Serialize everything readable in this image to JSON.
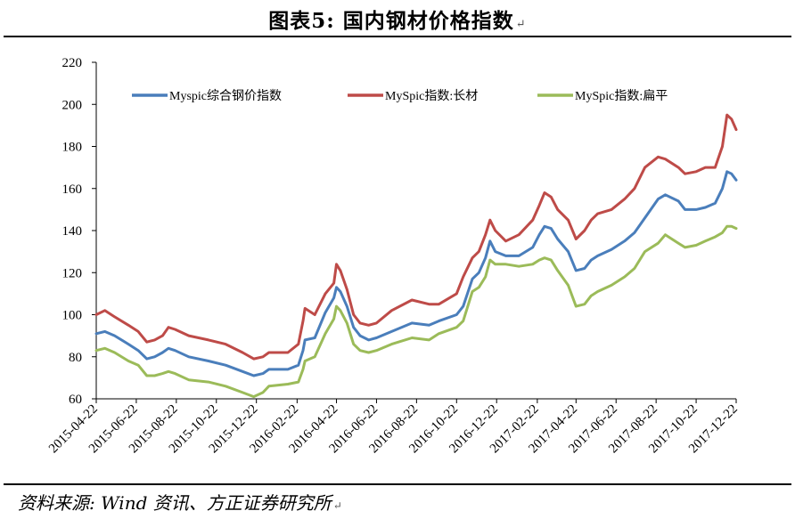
{
  "page": {
    "title": "图表5:  国内钢材价格指数",
    "title_mark": "↵",
    "source": "资料来源: Wind 资讯、方正证券研究所",
    "source_mark": "↵"
  },
  "chart_data": {
    "type": "line",
    "title": "图表5:  国内钢材价格指数",
    "xlabel": "",
    "ylabel": "",
    "ylim": [
      60,
      220
    ],
    "yticks": [
      60,
      80,
      100,
      120,
      140,
      160,
      180,
      200,
      220
    ],
    "xlim": [
      "2015-04-22",
      "2017-12-22"
    ],
    "xticks": [
      "2015-04-22",
      "2015-06-22",
      "2015-08-22",
      "2015-10-22",
      "2015-12-22",
      "2016-02-22",
      "2016-04-22",
      "2016-06-22",
      "2016-08-22",
      "2016-10-22",
      "2016-12-22",
      "2017-02-22",
      "2017-04-22",
      "2017-06-22",
      "2017-08-22",
      "2017-10-22",
      "2017-12-22"
    ],
    "grid": false,
    "legend": "top",
    "series": [
      {
        "name": "Myspic综合钢价指数",
        "color": "#4a7ebb",
        "points": [
          [
            "2015-04-22",
            91
          ],
          [
            "2015-05-05",
            92
          ],
          [
            "2015-05-20",
            90
          ],
          [
            "2015-06-10",
            86
          ],
          [
            "2015-06-25",
            83
          ],
          [
            "2015-07-08",
            79
          ],
          [
            "2015-07-20",
            80
          ],
          [
            "2015-08-01",
            82
          ],
          [
            "2015-08-10",
            84
          ],
          [
            "2015-08-20",
            83
          ],
          [
            "2015-09-10",
            80
          ],
          [
            "2015-10-10",
            78
          ],
          [
            "2015-11-05",
            76
          ],
          [
            "2015-12-01",
            73
          ],
          [
            "2015-12-18",
            71
          ],
          [
            "2016-01-01",
            72
          ],
          [
            "2016-01-10",
            74
          ],
          [
            "2016-02-08",
            74
          ],
          [
            "2016-02-24",
            76
          ],
          [
            "2016-03-02",
            83
          ],
          [
            "2016-03-05",
            88
          ],
          [
            "2016-03-20",
            89
          ],
          [
            "2016-04-05",
            101
          ],
          [
            "2016-04-18",
            108
          ],
          [
            "2016-04-22",
            113
          ],
          [
            "2016-04-28",
            111
          ],
          [
            "2016-05-08",
            104
          ],
          [
            "2016-05-18",
            94
          ],
          [
            "2016-05-28",
            90
          ],
          [
            "2016-06-10",
            88
          ],
          [
            "2016-06-22",
            89
          ],
          [
            "2016-07-15",
            92
          ],
          [
            "2016-08-15",
            96
          ],
          [
            "2016-09-10",
            95
          ],
          [
            "2016-09-25",
            97
          ],
          [
            "2016-10-22",
            100
          ],
          [
            "2016-11-01",
            104
          ],
          [
            "2016-11-15",
            117
          ],
          [
            "2016-11-25",
            120
          ],
          [
            "2016-12-05",
            127
          ],
          [
            "2016-12-12",
            135
          ],
          [
            "2016-12-20",
            130
          ],
          [
            "2017-01-05",
            128
          ],
          [
            "2017-01-25",
            128
          ],
          [
            "2017-02-15",
            132
          ],
          [
            "2017-02-25",
            138
          ],
          [
            "2017-03-05",
            142
          ],
          [
            "2017-03-15",
            141
          ],
          [
            "2017-03-25",
            136
          ],
          [
            "2017-04-10",
            130
          ],
          [
            "2017-04-22",
            121
          ],
          [
            "2017-05-05",
            122
          ],
          [
            "2017-05-15",
            126
          ],
          [
            "2017-05-25",
            128
          ],
          [
            "2017-06-15",
            131
          ],
          [
            "2017-07-05",
            135
          ],
          [
            "2017-07-20",
            139
          ],
          [
            "2017-08-05",
            146
          ],
          [
            "2017-08-25",
            155
          ],
          [
            "2017-09-05",
            157
          ],
          [
            "2017-09-25",
            154
          ],
          [
            "2017-10-05",
            150
          ],
          [
            "2017-10-22",
            150
          ],
          [
            "2017-11-05",
            151
          ],
          [
            "2017-11-20",
            153
          ],
          [
            "2017-12-01",
            160
          ],
          [
            "2017-12-08",
            168
          ],
          [
            "2017-12-15",
            167
          ],
          [
            "2017-12-22",
            164
          ]
        ]
      },
      {
        "name": "MySpic指数:长材",
        "color": "#be4b48",
        "points": [
          [
            "2015-04-22",
            100
          ],
          [
            "2015-05-05",
            102
          ],
          [
            "2015-05-20",
            99
          ],
          [
            "2015-06-10",
            95
          ],
          [
            "2015-06-25",
            92
          ],
          [
            "2015-07-08",
            87
          ],
          [
            "2015-07-20",
            88
          ],
          [
            "2015-08-01",
            90
          ],
          [
            "2015-08-10",
            94
          ],
          [
            "2015-08-20",
            93
          ],
          [
            "2015-09-10",
            90
          ],
          [
            "2015-10-10",
            88
          ],
          [
            "2015-11-05",
            86
          ],
          [
            "2015-12-01",
            82
          ],
          [
            "2015-12-18",
            79
          ],
          [
            "2016-01-01",
            80
          ],
          [
            "2016-01-10",
            82
          ],
          [
            "2016-02-08",
            82
          ],
          [
            "2016-02-24",
            86
          ],
          [
            "2016-03-02",
            97
          ],
          [
            "2016-03-05",
            103
          ],
          [
            "2016-03-20",
            100
          ],
          [
            "2016-04-05",
            110
          ],
          [
            "2016-04-18",
            115
          ],
          [
            "2016-04-22",
            124
          ],
          [
            "2016-04-28",
            121
          ],
          [
            "2016-05-08",
            112
          ],
          [
            "2016-05-18",
            100
          ],
          [
            "2016-05-28",
            96
          ],
          [
            "2016-06-10",
            95
          ],
          [
            "2016-06-22",
            96
          ],
          [
            "2016-07-15",
            102
          ],
          [
            "2016-08-15",
            107
          ],
          [
            "2016-09-10",
            105
          ],
          [
            "2016-09-25",
            105
          ],
          [
            "2016-10-22",
            110
          ],
          [
            "2016-11-01",
            118
          ],
          [
            "2016-11-15",
            127
          ],
          [
            "2016-11-25",
            130
          ],
          [
            "2016-12-05",
            138
          ],
          [
            "2016-12-12",
            145
          ],
          [
            "2016-12-20",
            140
          ],
          [
            "2017-01-05",
            135
          ],
          [
            "2017-01-25",
            138
          ],
          [
            "2017-02-15",
            145
          ],
          [
            "2017-02-25",
            152
          ],
          [
            "2017-03-05",
            158
          ],
          [
            "2017-03-15",
            156
          ],
          [
            "2017-03-25",
            150
          ],
          [
            "2017-04-10",
            145
          ],
          [
            "2017-04-22",
            136
          ],
          [
            "2017-05-05",
            140
          ],
          [
            "2017-05-15",
            145
          ],
          [
            "2017-05-25",
            148
          ],
          [
            "2017-06-15",
            150
          ],
          [
            "2017-07-05",
            155
          ],
          [
            "2017-07-20",
            160
          ],
          [
            "2017-08-05",
            170
          ],
          [
            "2017-08-25",
            175
          ],
          [
            "2017-09-05",
            174
          ],
          [
            "2017-09-25",
            170
          ],
          [
            "2017-10-05",
            167
          ],
          [
            "2017-10-22",
            168
          ],
          [
            "2017-11-05",
            170
          ],
          [
            "2017-11-20",
            170
          ],
          [
            "2017-12-01",
            180
          ],
          [
            "2017-12-08",
            195
          ],
          [
            "2017-12-15",
            193
          ],
          [
            "2017-12-22",
            188
          ]
        ]
      },
      {
        "name": "MySpic指数:扁平",
        "color": "#9bbb59",
        "points": [
          [
            "2015-04-22",
            83
          ],
          [
            "2015-05-05",
            84
          ],
          [
            "2015-05-20",
            82
          ],
          [
            "2015-06-10",
            78
          ],
          [
            "2015-06-25",
            76
          ],
          [
            "2015-07-08",
            71
          ],
          [
            "2015-07-20",
            71
          ],
          [
            "2015-08-01",
            72
          ],
          [
            "2015-08-10",
            73
          ],
          [
            "2015-08-20",
            72
          ],
          [
            "2015-09-10",
            69
          ],
          [
            "2015-10-10",
            68
          ],
          [
            "2015-11-05",
            66
          ],
          [
            "2015-12-01",
            63
          ],
          [
            "2015-12-18",
            61
          ],
          [
            "2016-01-01",
            63
          ],
          [
            "2016-01-10",
            66
          ],
          [
            "2016-02-08",
            67
          ],
          [
            "2016-02-24",
            68
          ],
          [
            "2016-03-02",
            74
          ],
          [
            "2016-03-05",
            78
          ],
          [
            "2016-03-20",
            80
          ],
          [
            "2016-04-05",
            91
          ],
          [
            "2016-04-18",
            98
          ],
          [
            "2016-04-22",
            104
          ],
          [
            "2016-04-28",
            102
          ],
          [
            "2016-05-08",
            96
          ],
          [
            "2016-05-18",
            86
          ],
          [
            "2016-05-28",
            83
          ],
          [
            "2016-06-10",
            82
          ],
          [
            "2016-06-22",
            83
          ],
          [
            "2016-07-15",
            86
          ],
          [
            "2016-08-15",
            89
          ],
          [
            "2016-09-10",
            88
          ],
          [
            "2016-09-25",
            91
          ],
          [
            "2016-10-22",
            94
          ],
          [
            "2016-11-01",
            97
          ],
          [
            "2016-11-15",
            111
          ],
          [
            "2016-11-25",
            113
          ],
          [
            "2016-12-05",
            118
          ],
          [
            "2016-12-12",
            126
          ],
          [
            "2016-12-20",
            124
          ],
          [
            "2017-01-05",
            124
          ],
          [
            "2017-01-25",
            123
          ],
          [
            "2017-02-15",
            124
          ],
          [
            "2017-02-25",
            126
          ],
          [
            "2017-03-05",
            127
          ],
          [
            "2017-03-15",
            126
          ],
          [
            "2017-03-25",
            121
          ],
          [
            "2017-04-10",
            114
          ],
          [
            "2017-04-22",
            104
          ],
          [
            "2017-05-05",
            105
          ],
          [
            "2017-05-15",
            109
          ],
          [
            "2017-05-25",
            111
          ],
          [
            "2017-06-15",
            114
          ],
          [
            "2017-07-05",
            118
          ],
          [
            "2017-07-20",
            122
          ],
          [
            "2017-08-05",
            130
          ],
          [
            "2017-08-25",
            134
          ],
          [
            "2017-09-05",
            138
          ],
          [
            "2017-09-25",
            134
          ],
          [
            "2017-10-05",
            132
          ],
          [
            "2017-10-22",
            133
          ],
          [
            "2017-11-05",
            135
          ],
          [
            "2017-11-20",
            137
          ],
          [
            "2017-12-01",
            139
          ],
          [
            "2017-12-08",
            142
          ],
          [
            "2017-12-15",
            142
          ],
          [
            "2017-12-22",
            141
          ]
        ]
      }
    ]
  }
}
